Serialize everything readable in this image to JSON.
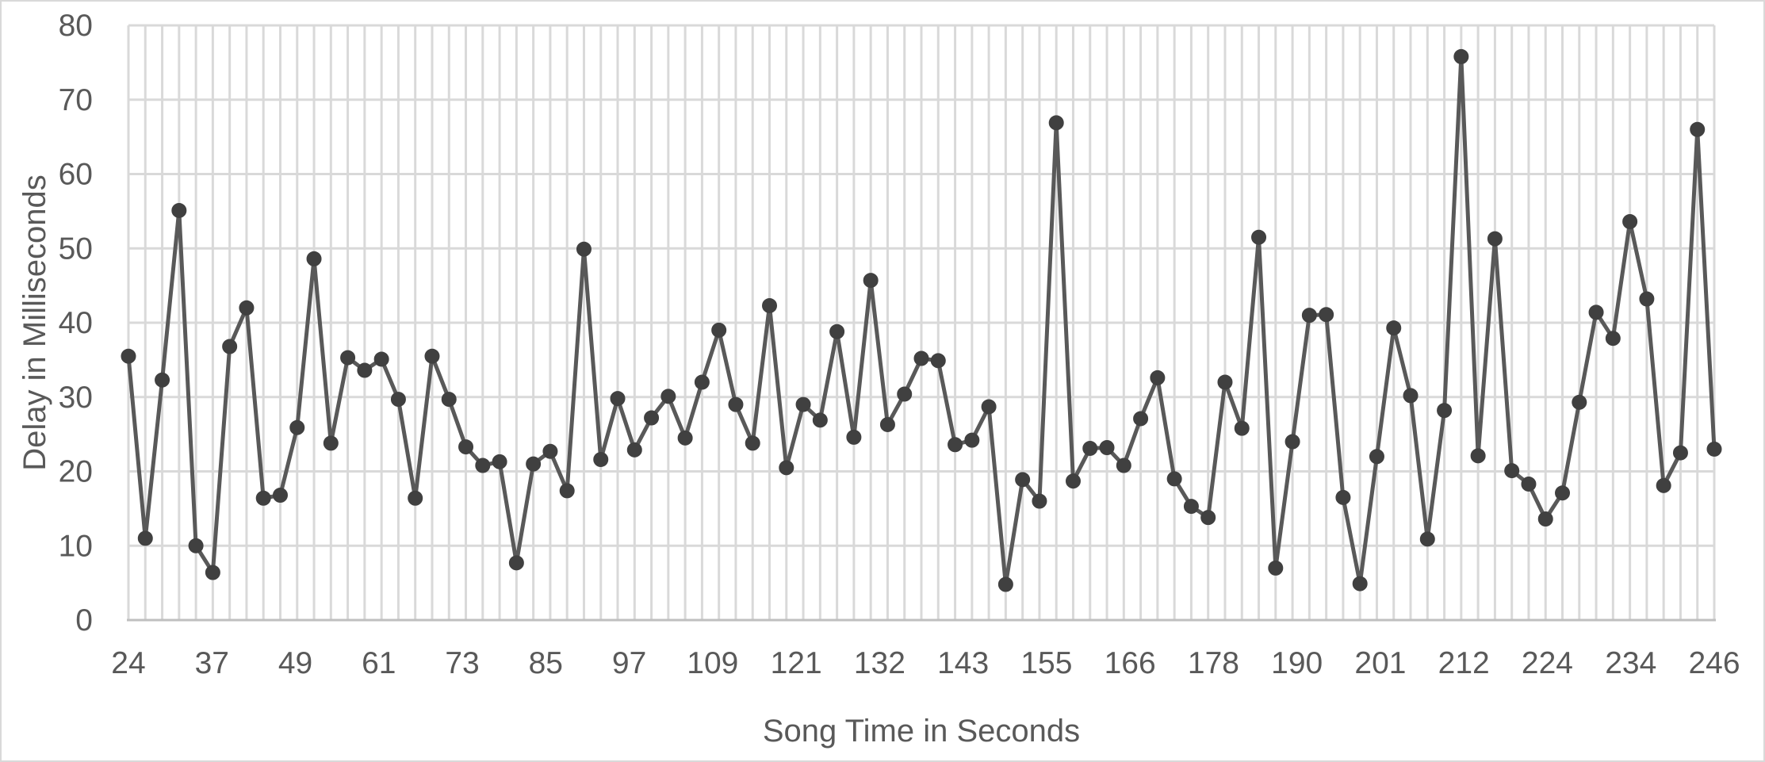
{
  "chart_data": {
    "type": "line",
    "title": "",
    "xlabel": "Song Time in Seconds",
    "ylabel": "Delay in Milliseconds",
    "ylim": [
      0,
      80
    ],
    "yticks": [
      0,
      10,
      20,
      30,
      40,
      50,
      60,
      70,
      80
    ],
    "xtick_labels": [
      "24",
      "37",
      "49",
      "61",
      "73",
      "85",
      "97",
      "109",
      "121",
      "132",
      "143",
      "155",
      "166",
      "178",
      "190",
      "201",
      "212",
      "224",
      "234",
      "246"
    ],
    "grid": true,
    "legend": "none",
    "colors": {
      "line": "#595959",
      "marker": "#404040",
      "grid": "#d9d9d9",
      "axis": "#bfbfbf",
      "text": "#595959"
    },
    "values": [
      35.5,
      11,
      32.3,
      55.1,
      10,
      6.4,
      36.8,
      42,
      16.4,
      16.8,
      25.9,
      48.6,
      23.8,
      35.3,
      33.6,
      35.1,
      29.7,
      16.4,
      35.5,
      29.7,
      23.3,
      20.8,
      21.3,
      7.7,
      21,
      22.7,
      17.4,
      49.9,
      21.6,
      29.8,
      22.9,
      27.2,
      30.1,
      24.5,
      32,
      39,
      29,
      23.8,
      42.3,
      20.5,
      29,
      26.9,
      38.8,
      24.6,
      45.7,
      26.3,
      30.4,
      35.2,
      34.9,
      23.6,
      24.2,
      28.7,
      4.8,
      18.9,
      16,
      66.9,
      18.7,
      23.1,
      23.2,
      20.8,
      27.1,
      32.6,
      19,
      15.3,
      13.8,
      32,
      25.8,
      51.5,
      7,
      24,
      41,
      41.1,
      16.5,
      4.9,
      22,
      39.3,
      30.2,
      10.9,
      28.2,
      75.8,
      22.1,
      51.3,
      20.1,
      18.3,
      13.6,
      17.1,
      29.3,
      41.4,
      37.9,
      53.6,
      43.2,
      18.1,
      22.5,
      66,
      23
    ]
  }
}
